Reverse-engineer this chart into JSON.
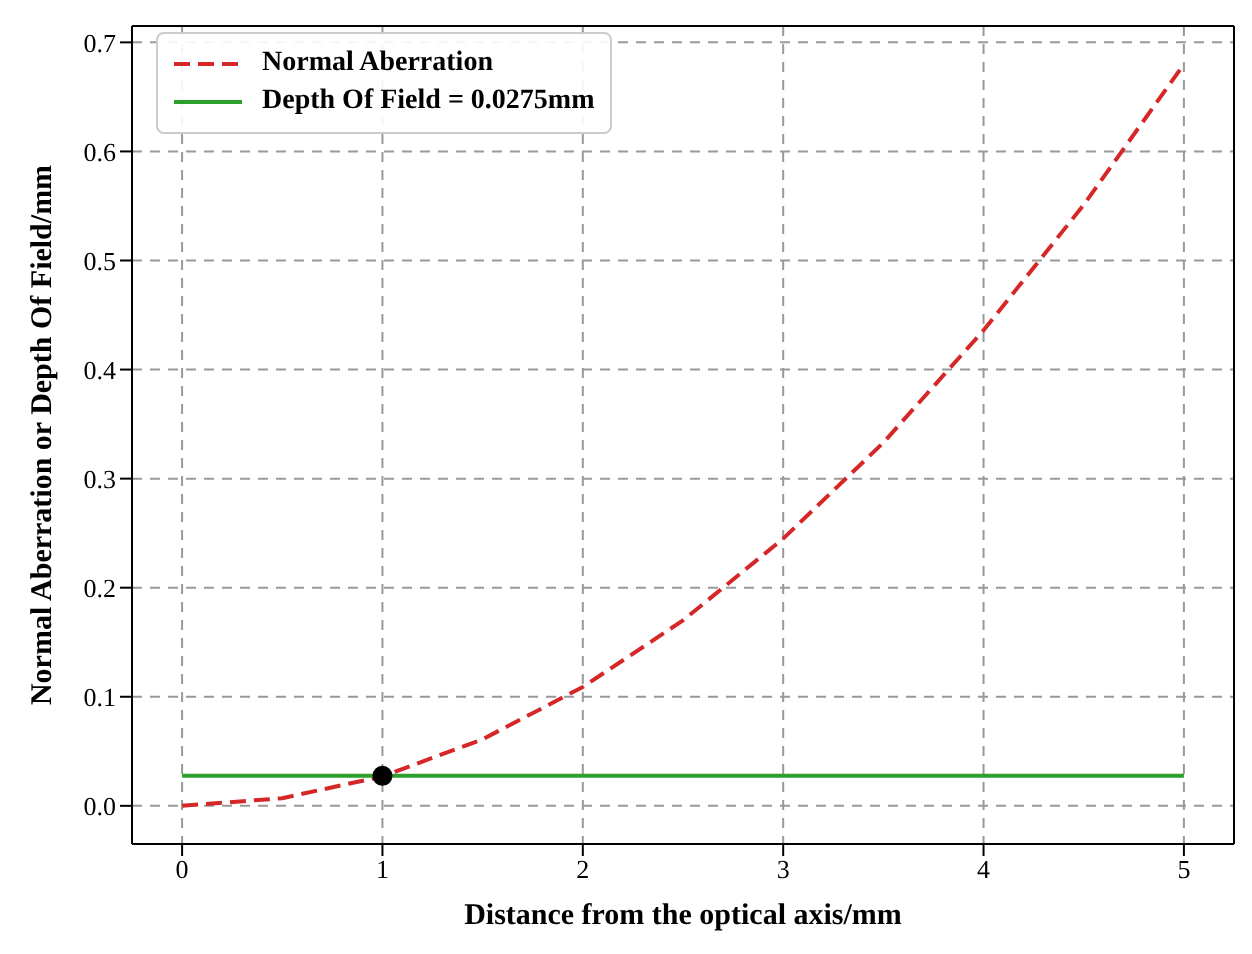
{
  "chart_data": {
    "type": "line",
    "xlabel": "Distance from the optical axis/mm",
    "ylabel": "Normal Aberration or Depth Of Field/mm",
    "xlim": [
      -0.25,
      5.25
    ],
    "ylim": [
      -0.035,
      0.715
    ],
    "xticks": [
      0,
      1,
      2,
      3,
      4,
      5
    ],
    "yticks": [
      {
        "value": 0,
        "label": "0.0"
      },
      {
        "value": 0.1,
        "label": "0.1"
      },
      {
        "value": 0.2,
        "label": "0.2"
      },
      {
        "value": 0.3,
        "label": "0.3"
      },
      {
        "value": 0.4,
        "label": "0.4"
      },
      {
        "value": 0.5,
        "label": "0.5"
      },
      {
        "value": 0.6,
        "label": "0.6"
      },
      {
        "value": 0.7,
        "label": "0.7"
      }
    ],
    "grid": true,
    "legend": "top left",
    "series": [
      {
        "name": "Normal Aberration",
        "color": "#d62728",
        "line_style": "dashed",
        "x": [
          0,
          0.5,
          1,
          1.5,
          2,
          2.5,
          3,
          3.5,
          4,
          4.5,
          5
        ],
        "values": [
          0,
          0.007,
          0.027,
          0.061,
          0.109,
          0.17,
          0.245,
          0.333,
          0.436,
          0.551,
          0.68
        ]
      },
      {
        "name": "Depth Of Field = 0.0275mm",
        "color": "#2ca02c",
        "line_style": "solid",
        "x": [
          0,
          5
        ],
        "values": [
          0.0275,
          0.0275
        ]
      },
      {
        "type": "scatter",
        "color": "#000000",
        "marker": "circle",
        "x": [
          1
        ],
        "values": [
          0.0275
        ]
      }
    ]
  }
}
